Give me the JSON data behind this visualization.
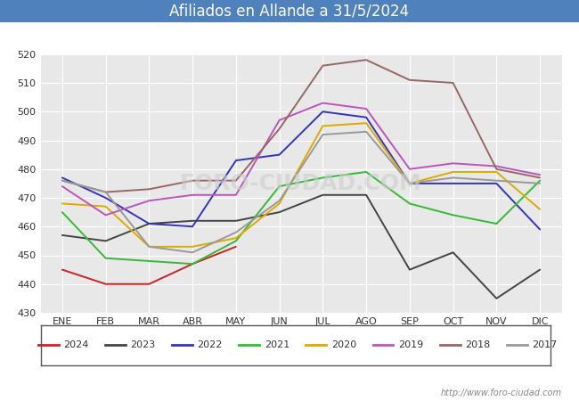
{
  "title": "Afiliados en Allande a 31/5/2024",
  "title_color": "#222222",
  "background_color": "#ffffff",
  "plot_bg_color": "#e8e8e8",
  "ylim": [
    430,
    520
  ],
  "yticks": [
    430,
    440,
    450,
    460,
    470,
    480,
    490,
    500,
    510,
    520
  ],
  "months": [
    "ENE",
    "FEB",
    "MAR",
    "ABR",
    "MAY",
    "JUN",
    "JUL",
    "AGO",
    "SEP",
    "OCT",
    "NOV",
    "DIC"
  ],
  "watermark": "http://www.foro-ciudad.com",
  "header_color": "#4f81bd",
  "series": [
    {
      "label": "2024",
      "color": "#cc2222",
      "data": [
        445,
        440,
        440,
        447,
        453,
        null,
        null,
        null,
        null,
        null,
        null,
        null
      ]
    },
    {
      "label": "2023",
      "color": "#444444",
      "data": [
        457,
        455,
        461,
        462,
        462,
        465,
        471,
        471,
        445,
        451,
        435,
        445
      ]
    },
    {
      "label": "2022",
      "color": "#3333bb",
      "data": [
        477,
        470,
        461,
        460,
        483,
        485,
        500,
        498,
        475,
        475,
        475,
        459
      ]
    },
    {
      "label": "2021",
      "color": "#33bb33",
      "data": [
        465,
        449,
        448,
        447,
        455,
        474,
        477,
        479,
        468,
        464,
        461,
        476
      ]
    },
    {
      "label": "2020",
      "color": "#ddaa00",
      "data": [
        468,
        467,
        453,
        453,
        456,
        468,
        495,
        496,
        475,
        479,
        479,
        466
      ]
    },
    {
      "label": "2019",
      "color": "#bb55bb",
      "data": [
        474,
        464,
        469,
        471,
        471,
        497,
        503,
        501,
        480,
        482,
        481,
        478
      ]
    },
    {
      "label": "2018",
      "color": "#996666",
      "data": [
        476,
        472,
        473,
        476,
        476,
        494,
        516,
        518,
        511,
        510,
        480,
        477
      ]
    },
    {
      "label": "2017",
      "color": "#999999",
      "data": [
        476,
        472,
        453,
        451,
        458,
        469,
        492,
        493,
        475,
        477,
        476,
        475
      ]
    }
  ],
  "legend_border_color": "#555555",
  "footer_color": "#888888",
  "linewidth": 1.4
}
